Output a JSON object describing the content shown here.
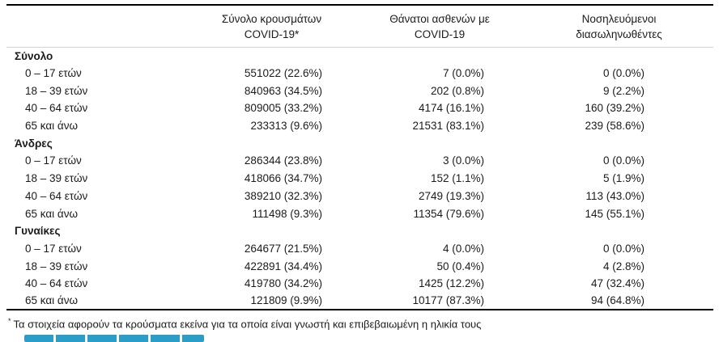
{
  "table": {
    "columns": [
      "Σύνολο κρουσμάτων COVID-19*",
      "Θάνατοι ασθενών με COVID-19",
      "Νοσηλευόμενοι διασωληνωθέντες"
    ],
    "groups": [
      {
        "label": "Σύνολο",
        "rows": [
          {
            "label": "0 – 17 ετών",
            "cases": "551022 (22.6%)",
            "deaths": "7 (0.0%)",
            "intubated": "0 (0.0%)"
          },
          {
            "label": "18 – 39 ετών",
            "cases": "840963 (34.5%)",
            "deaths": "202 (0.8%)",
            "intubated": "9 (2.2%)"
          },
          {
            "label": "40 – 64 ετών",
            "cases": "809005 (33.2%)",
            "deaths": "4174 (16.1%)",
            "intubated": "160 (39.2%)"
          },
          {
            "label": "65 και άνω",
            "cases": "233313 (9.6%)",
            "deaths": "21531 (83.1%)",
            "intubated": "239 (58.6%)"
          }
        ]
      },
      {
        "label": "Άνδρες",
        "rows": [
          {
            "label": "0 – 17 ετών",
            "cases": "286344 (23.8%)",
            "deaths": "3 (0.0%)",
            "intubated": "0 (0.0%)"
          },
          {
            "label": "18 – 39 ετών",
            "cases": "418066 (34.7%)",
            "deaths": "152 (1.1%)",
            "intubated": "5 (1.9%)"
          },
          {
            "label": "40 – 64 ετών",
            "cases": "389210 (32.3%)",
            "deaths": "2749 (19.3%)",
            "intubated": "113 (43.0%)"
          },
          {
            "label": "65 και άνω",
            "cases": "111498 (9.3%)",
            "deaths": "11354 (79.6%)",
            "intubated": "145 (55.1%)"
          }
        ]
      },
      {
        "label": "Γυναίκες",
        "rows": [
          {
            "label": "0 – 17 ετών",
            "cases": "264677 (21.5%)",
            "deaths": "4 (0.0%)",
            "intubated": "0 (0.0%)"
          },
          {
            "label": "18 – 39 ετών",
            "cases": "422891 (34.4%)",
            "deaths": "50 (0.4%)",
            "intubated": "4 (2.8%)"
          },
          {
            "label": "40 – 64 ετών",
            "cases": "419780 (34.2%)",
            "deaths": "1425 (12.2%)",
            "intubated": "47 (32.4%)"
          },
          {
            "label": "65 και άνω",
            "cases": "121809 (9.9%)",
            "deaths": "10177 (87.3%)",
            "intubated": "94 (64.8%)"
          }
        ]
      }
    ]
  },
  "footnote": {
    "marker": "*",
    "text": "Τα στοιχεία αφορούν τα κρούσματα εκείνα για τα οποία είναι γνωστή και επιβεβαιωμένη η ηλικία τους"
  },
  "colors": {
    "accent_teal": "#2b9ec7",
    "rule_dark": "#000000",
    "rule_light": "#ccd3d9"
  }
}
